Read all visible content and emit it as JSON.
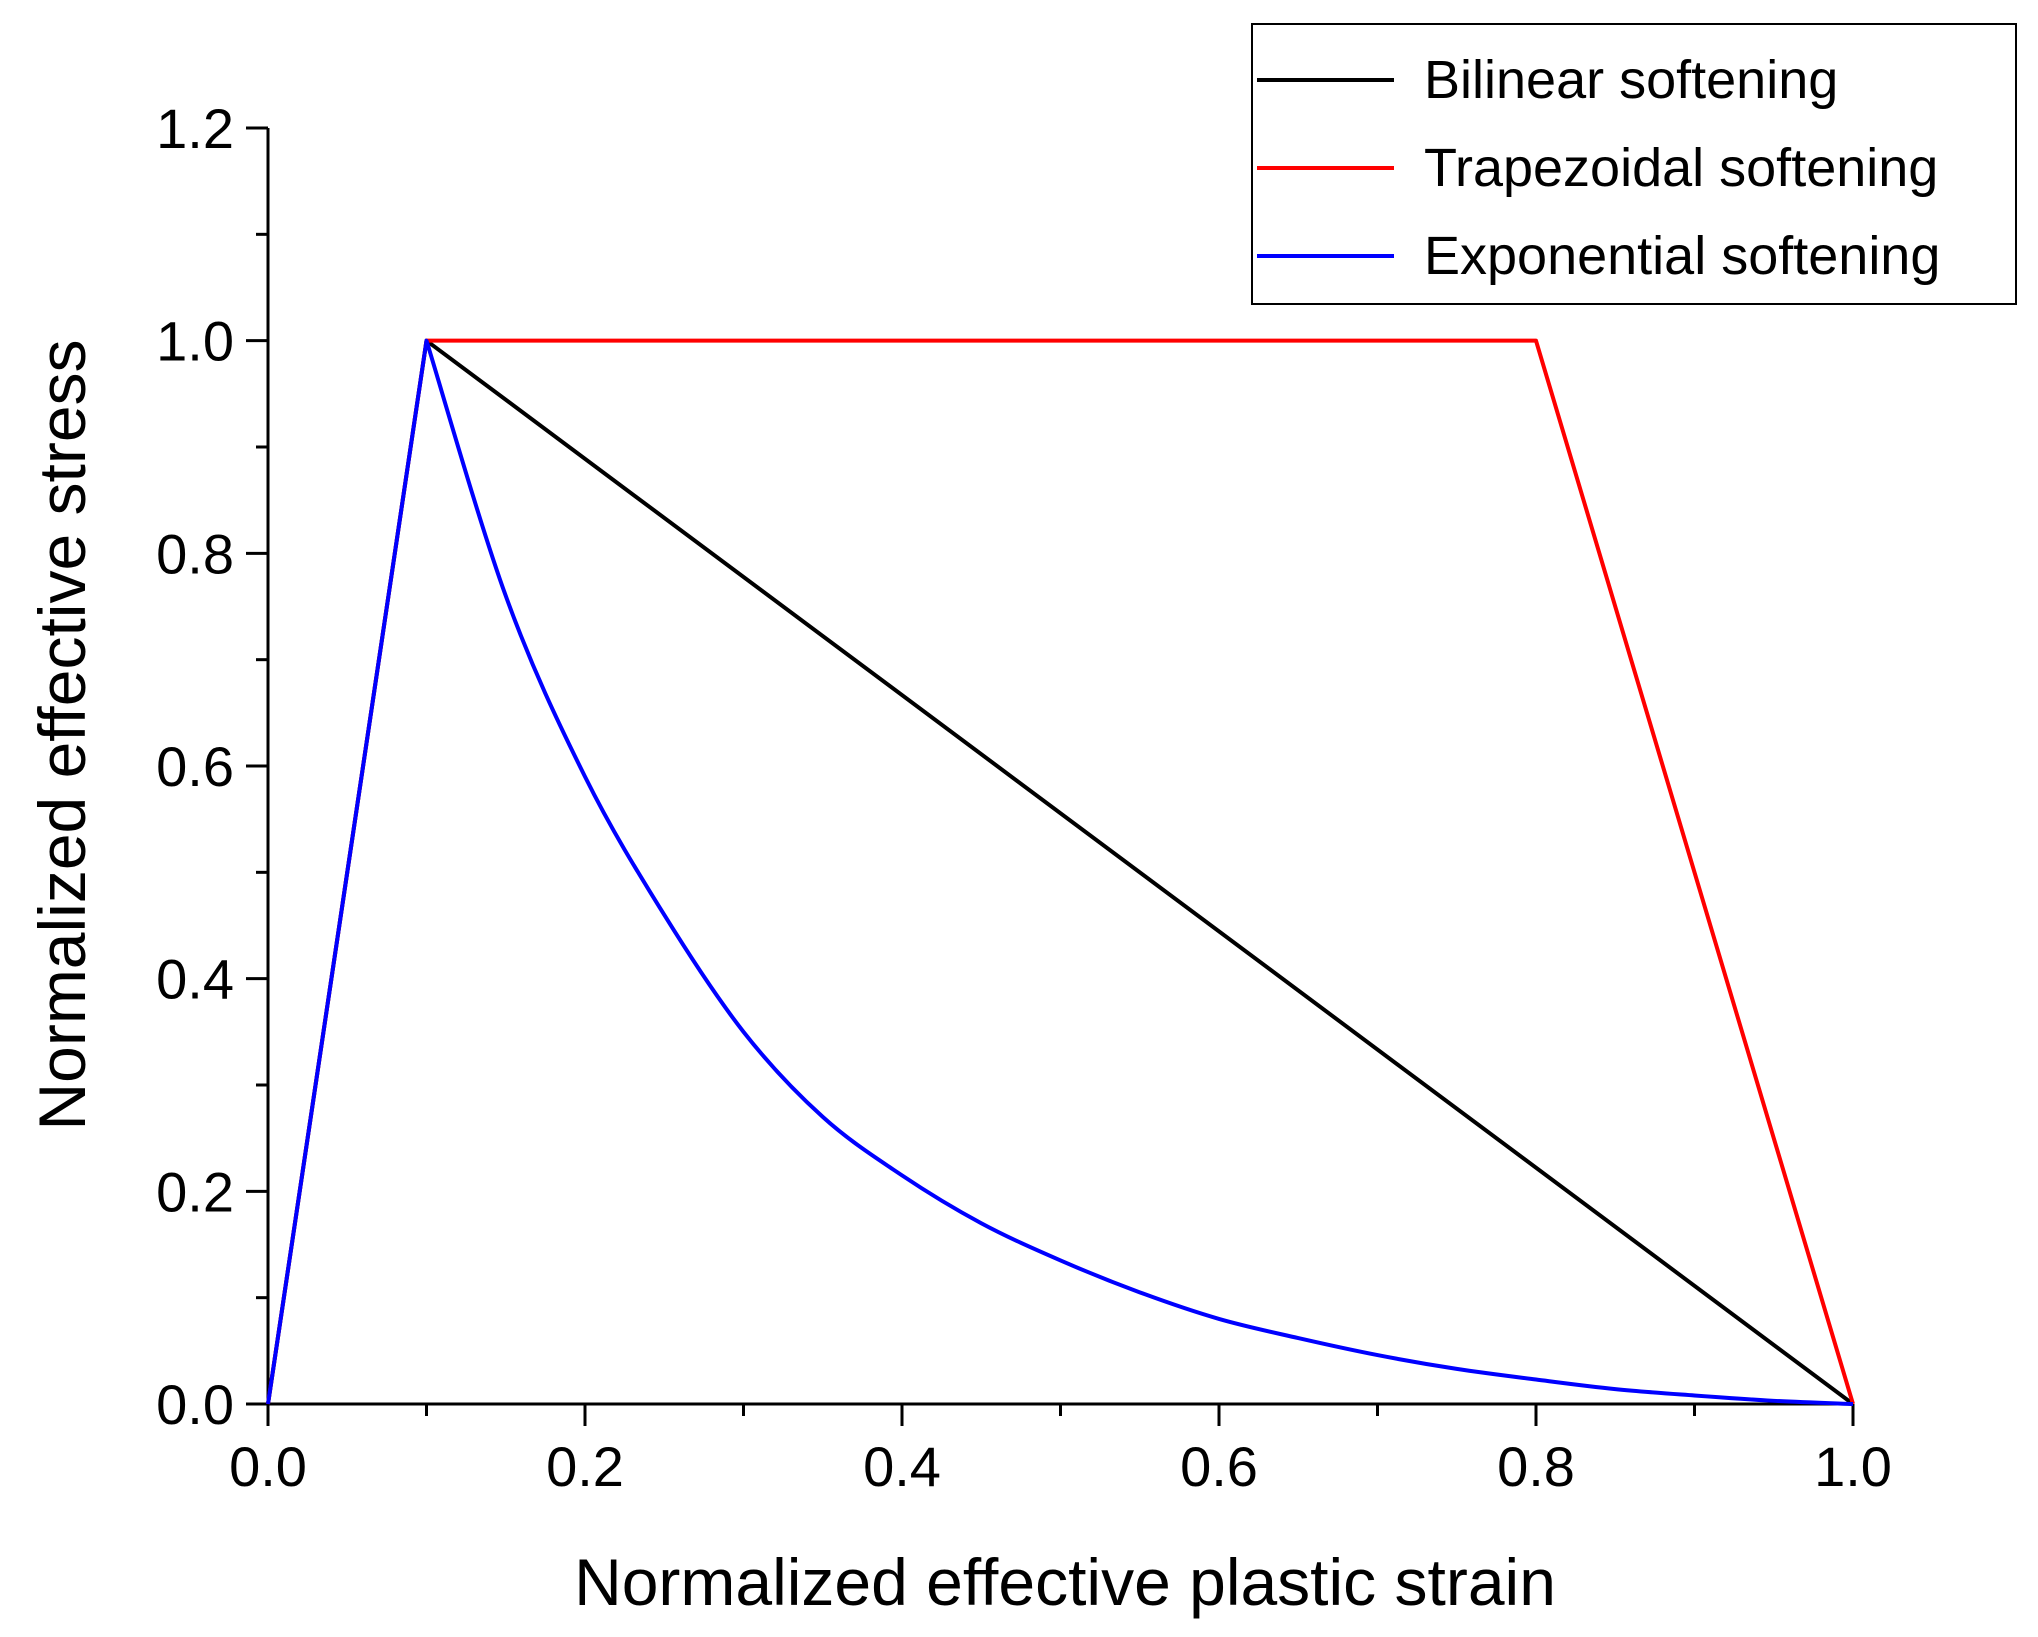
{
  "chart_data": {
    "type": "line",
    "title": "",
    "xlabel": "Normalized effective plastic strain",
    "ylabel": "Normalized effective stress",
    "xlim": [
      0.0,
      1.0
    ],
    "ylim": [
      0.0,
      1.2
    ],
    "xticks": [
      "0.0",
      "0.2",
      "0.4",
      "0.6",
      "0.8",
      "1.0"
    ],
    "yticks": [
      "0.0",
      "0.2",
      "0.4",
      "0.6",
      "0.8",
      "1.0",
      "1.2"
    ],
    "xtick_values": [
      0.0,
      0.2,
      0.4,
      0.6,
      0.8,
      1.0
    ],
    "ytick_values": [
      0.0,
      0.2,
      0.4,
      0.6,
      0.8,
      1.0,
      1.2
    ],
    "legend_position": "top-right",
    "series": [
      {
        "name": "Bilinear softening",
        "color": "#000000",
        "x": [
          0.0,
          0.1,
          1.0
        ],
        "y": [
          0.0,
          1.0,
          0.0
        ]
      },
      {
        "name": "Trapezoidal softening",
        "color": "#ff0000",
        "x": [
          0.0,
          0.1,
          0.8,
          1.0
        ],
        "y": [
          0.0,
          1.0,
          1.0,
          0.0
        ]
      },
      {
        "name": "Exponential softening",
        "color": "#0000ff",
        "x": [
          0.0,
          0.1,
          0.15,
          0.2,
          0.25,
          0.3,
          0.35,
          0.4,
          0.45,
          0.5,
          0.55,
          0.6,
          0.65,
          0.7,
          0.75,
          0.8,
          0.85,
          0.9,
          0.95,
          1.0
        ],
        "y": [
          0.0,
          1.0,
          0.76,
          0.59,
          0.46,
          0.35,
          0.27,
          0.215,
          0.17,
          0.135,
          0.105,
          0.08,
          0.062,
          0.046,
          0.033,
          0.023,
          0.014,
          0.008,
          0.003,
          0.0
        ]
      }
    ]
  }
}
